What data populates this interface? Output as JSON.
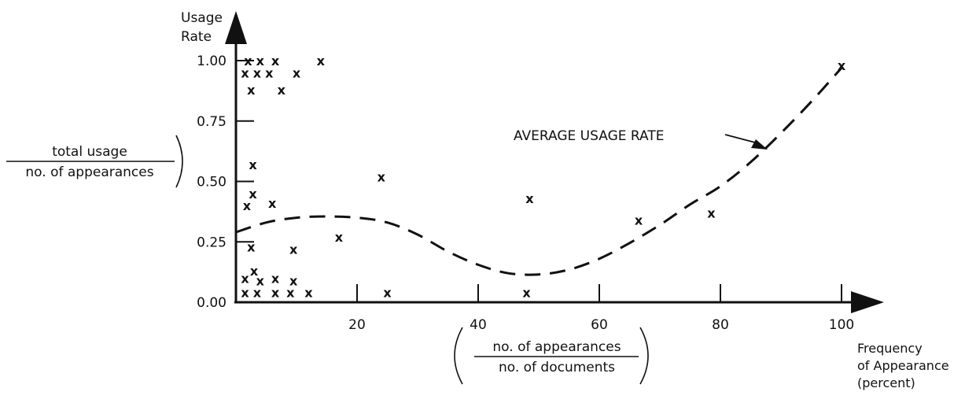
{
  "chart_data": {
    "type": "scatter",
    "title": "",
    "ylabel": {
      "line1": "Usage",
      "line2": "Rate",
      "formula_numerator": "total usage",
      "formula_denominator": "no. of appearances"
    },
    "xlabel": {
      "line1": "Frequency",
      "line2": "of Appearance",
      "line3": "(percent)",
      "formula_numerator": "no. of appearances",
      "formula_denominator": "no. of documents"
    },
    "xlim": [
      0,
      100
    ],
    "ylim": [
      0,
      1.0
    ],
    "x_ticks": [
      20,
      40,
      60,
      80,
      100
    ],
    "x_tick_labels": [
      "20",
      "40",
      "60",
      "80",
      "100"
    ],
    "y_ticks": [
      0,
      0.25,
      0.5,
      0.75,
      1.0
    ],
    "y_tick_labels": [
      "0.00",
      "0.25",
      "0.50",
      "0.75",
      "1.00"
    ],
    "marker": "x",
    "points": [
      {
        "x": 2,
        "y": 1.0
      },
      {
        "x": 4,
        "y": 1.0
      },
      {
        "x": 6.5,
        "y": 1.0
      },
      {
        "x": 14,
        "y": 1.0
      },
      {
        "x": 1.5,
        "y": 0.95
      },
      {
        "x": 3.5,
        "y": 0.95
      },
      {
        "x": 5.5,
        "y": 0.95
      },
      {
        "x": 10,
        "y": 0.95
      },
      {
        "x": 2.5,
        "y": 0.88
      },
      {
        "x": 7.5,
        "y": 0.88
      },
      {
        "x": 2.8,
        "y": 0.57
      },
      {
        "x": 2.8,
        "y": 0.45
      },
      {
        "x": 1.8,
        "y": 0.4
      },
      {
        "x": 6,
        "y": 0.41
      },
      {
        "x": 2.5,
        "y": 0.23
      },
      {
        "x": 9.5,
        "y": 0.22
      },
      {
        "x": 17,
        "y": 0.27
      },
      {
        "x": 3,
        "y": 0.13
      },
      {
        "x": 1.5,
        "y": 0.1
      },
      {
        "x": 4,
        "y": 0.09
      },
      {
        "x": 6.5,
        "y": 0.1
      },
      {
        "x": 9.5,
        "y": 0.09
      },
      {
        "x": 1.5,
        "y": 0.04
      },
      {
        "x": 3.5,
        "y": 0.04
      },
      {
        "x": 6.5,
        "y": 0.04
      },
      {
        "x": 9,
        "y": 0.04
      },
      {
        "x": 12,
        "y": 0.04
      },
      {
        "x": 24,
        "y": 0.52
      },
      {
        "x": 25,
        "y": 0.04
      },
      {
        "x": 48,
        "y": 0.04
      },
      {
        "x": 48.5,
        "y": 0.43
      },
      {
        "x": 66.5,
        "y": 0.34
      },
      {
        "x": 78.5,
        "y": 0.37
      },
      {
        "x": 100,
        "y": 0.98
      }
    ],
    "curve": {
      "name": "AVERAGE USAGE RATE",
      "style": "dashed",
      "x": [
        0,
        5,
        10,
        15,
        20,
        25,
        30,
        35,
        40,
        45,
        50,
        55,
        60,
        65,
        70,
        75,
        80,
        85,
        90,
        95,
        100
      ],
      "y": [
        0.29,
        0.33,
        0.35,
        0.355,
        0.35,
        0.33,
        0.28,
        0.21,
        0.155,
        0.12,
        0.115,
        0.135,
        0.18,
        0.245,
        0.32,
        0.405,
        0.48,
        0.58,
        0.7,
        0.83,
        0.97
      ]
    },
    "annotations": [
      {
        "text": "AVERAGE USAGE RATE",
        "points_to": {
          "x": 88,
          "y": 0.68
        }
      }
    ]
  }
}
